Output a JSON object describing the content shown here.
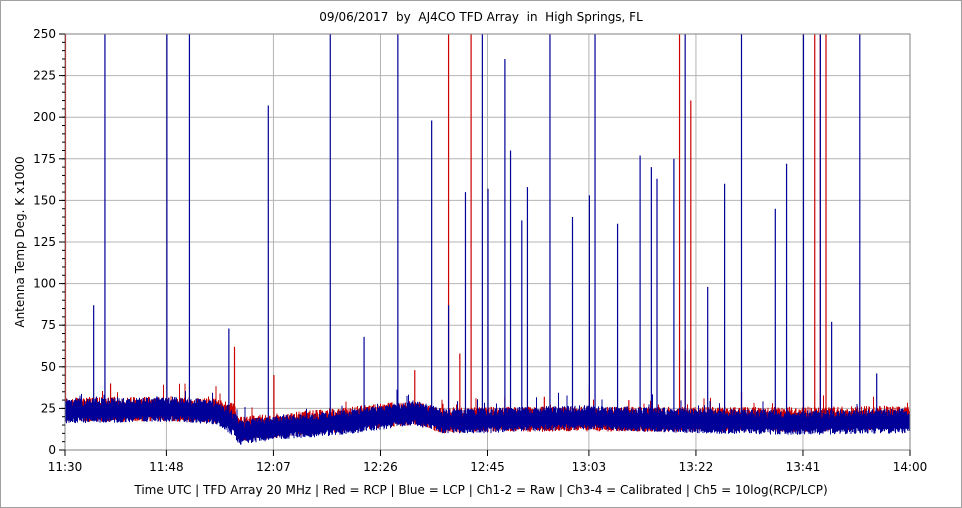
{
  "chart_data": {
    "type": "line",
    "title": "09/06/2017  by  AJ4CO TFD Array  in  High Springs, FL",
    "xlabel": "Time UTC | TFD Array 20 MHz | Red = RCP | Blue = LCP | Ch1-2 = Raw | Ch3-4 = Calibrated | Ch5 = 10log(RCP/LCP)",
    "ylabel": "Antenna Temp Deg. K x1000",
    "x_ticks": [
      "11:30",
      "11:48",
      "12:07",
      "12:26",
      "12:45",
      "13:03",
      "13:22",
      "13:41",
      "14:00"
    ],
    "y_ticks": [
      "0",
      "25",
      "50",
      "75",
      "100",
      "125",
      "150",
      "175",
      "200",
      "225",
      "250"
    ],
    "xlim": [
      "11:30",
      "14:00"
    ],
    "ylim": [
      0,
      250
    ],
    "grid": true,
    "colors": {
      "rcp": "#cc0000",
      "lcp": "#000099",
      "grid": "#b4b4b4"
    },
    "series": [
      {
        "name": "RCP",
        "color": "#cc0000",
        "baseline": [
          [
            "11:30",
            24
          ],
          [
            "11:50",
            24
          ],
          [
            "11:57",
            23
          ],
          [
            "12:00",
            20
          ],
          [
            "12:01",
            12
          ],
          [
            "12:07",
            14
          ],
          [
            "12:20",
            18
          ],
          [
            "12:32",
            22
          ],
          [
            "12:37",
            17
          ],
          [
            "12:45",
            18
          ],
          [
            "12:50",
            18
          ],
          [
            "13:03",
            18
          ],
          [
            "13:22",
            18
          ],
          [
            "13:41",
            18
          ],
          [
            "14:00",
            19
          ]
        ],
        "spikes": [
          [
            "11:30",
            250
          ],
          [
            "11:38",
            40
          ],
          [
            "12:00",
            62
          ],
          [
            "12:07",
            45
          ],
          [
            "12:32",
            48
          ],
          [
            "12:38",
            250
          ],
          [
            "12:40",
            58
          ],
          [
            "12:42",
            250
          ],
          [
            "12:48",
            32
          ],
          [
            "12:55",
            32
          ],
          [
            "13:03",
            38
          ],
          [
            "13:10",
            30
          ],
          [
            "13:19",
            250
          ],
          [
            "13:20",
            60
          ],
          [
            "13:21",
            210
          ],
          [
            "13:30",
            35
          ],
          [
            "13:41",
            55
          ],
          [
            "13:43",
            250
          ],
          [
            "13:44",
            250
          ],
          [
            "13:44",
            250
          ],
          [
            "13:45",
            250
          ]
        ]
      },
      {
        "name": "LCP",
        "color": "#000099",
        "baseline": [
          [
            "11:30",
            23
          ],
          [
            "11:50",
            24
          ],
          [
            "11:57",
            22
          ],
          [
            "12:00",
            15
          ],
          [
            "12:01",
            10
          ],
          [
            "12:07",
            13
          ],
          [
            "12:20",
            16
          ],
          [
            "12:32",
            22
          ],
          [
            "12:37",
            17
          ],
          [
            "12:45",
            17
          ],
          [
            "12:50",
            18
          ],
          [
            "13:03",
            19
          ],
          [
            "13:22",
            17
          ],
          [
            "13:41",
            16
          ],
          [
            "14:00",
            17
          ]
        ],
        "spikes": [
          [
            "11:35",
            87
          ],
          [
            "11:37",
            250
          ],
          [
            "11:48",
            250
          ],
          [
            "11:52",
            250
          ],
          [
            "11:59",
            73
          ],
          [
            "12:06",
            207
          ],
          [
            "12:17",
            250
          ],
          [
            "12:23",
            68
          ],
          [
            "12:29",
            250
          ],
          [
            "12:35",
            198
          ],
          [
            "12:38",
            87
          ],
          [
            "12:41",
            155
          ],
          [
            "12:44",
            250
          ],
          [
            "12:45",
            157
          ],
          [
            "12:48",
            235
          ],
          [
            "12:49",
            180
          ],
          [
            "12:51",
            138
          ],
          [
            "12:52",
            158
          ],
          [
            "12:56",
            250
          ],
          [
            "13:00",
            140
          ],
          [
            "13:03",
            153
          ],
          [
            "13:04",
            250
          ],
          [
            "13:08",
            136
          ],
          [
            "13:12",
            177
          ],
          [
            "13:14",
            170
          ],
          [
            "13:15",
            163
          ],
          [
            "13:18",
            175
          ],
          [
            "13:20",
            250
          ],
          [
            "13:24",
            98
          ],
          [
            "13:27",
            160
          ],
          [
            "13:30",
            250
          ],
          [
            "13:36",
            145
          ],
          [
            "13:38",
            172
          ],
          [
            "13:41",
            250
          ],
          [
            "13:44",
            250
          ],
          [
            "13:46",
            77
          ],
          [
            "13:51",
            250
          ],
          [
            "13:54",
            46
          ]
        ]
      }
    ]
  }
}
